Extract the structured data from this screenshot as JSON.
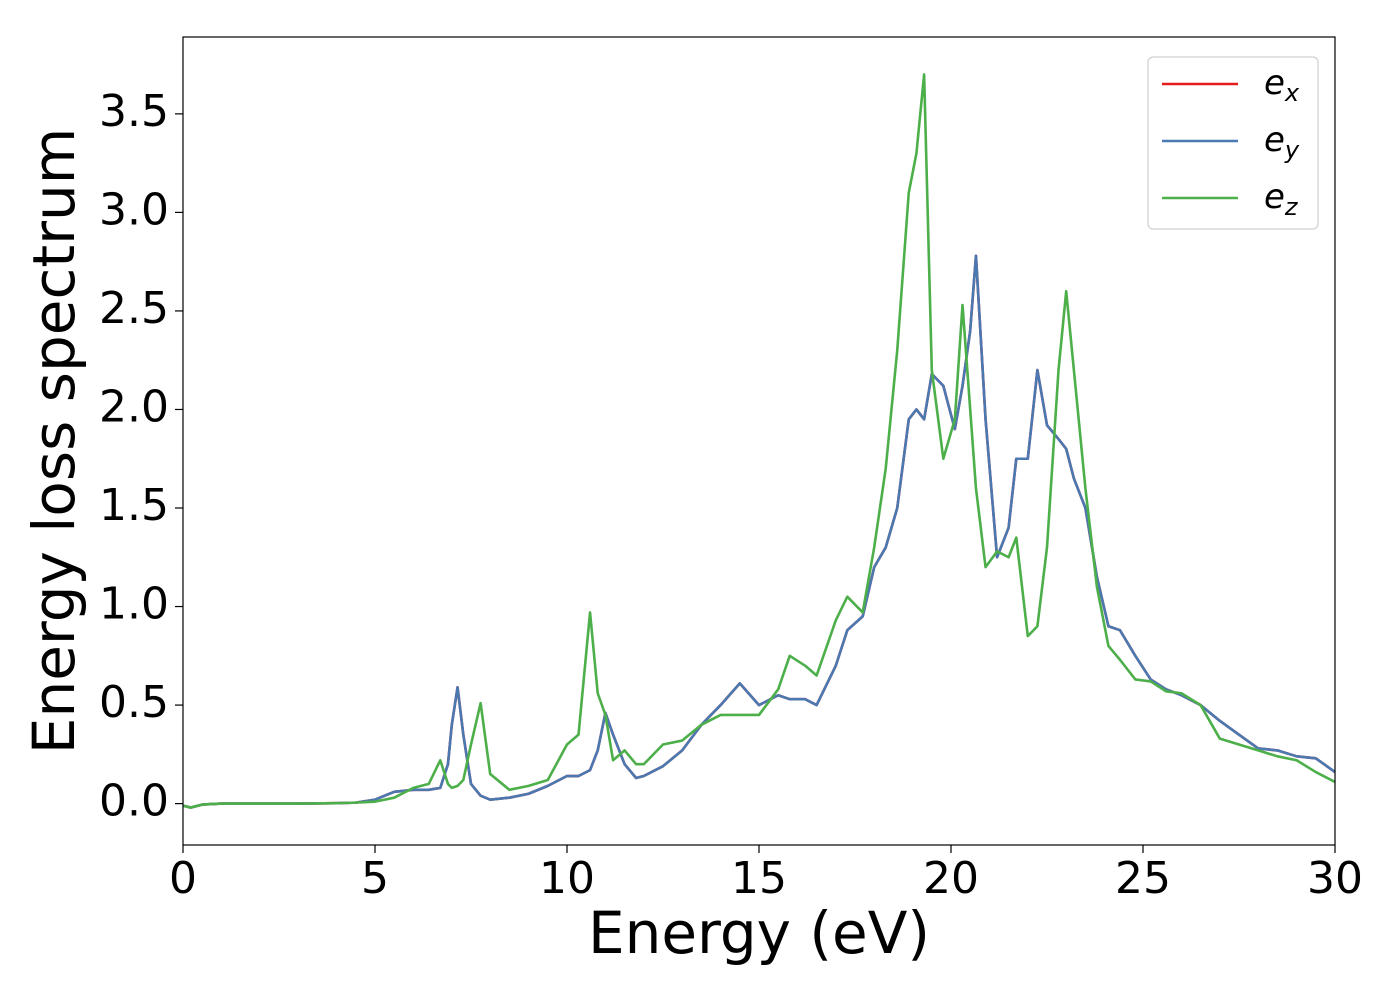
{
  "chart_data": {
    "type": "line",
    "xlabel": "Energy (eV)",
    "ylabel": "Energy loss spectrum",
    "x": [
      0,
      0.2,
      0.5,
      1,
      2,
      3,
      4,
      4.5,
      5,
      5.5,
      6,
      6.4,
      6.7,
      6.9,
      7.0,
      7.15,
      7.3,
      7.5,
      7.75,
      8.0,
      8.5,
      9,
      9.5,
      10,
      10.3,
      10.6,
      10.8,
      11.0,
      11.2,
      11.5,
      11.8,
      12,
      12.5,
      13,
      13.5,
      14,
      14.5,
      15,
      15.5,
      15.8,
      16.2,
      16.5,
      17,
      17.3,
      17.7,
      18,
      18.3,
      18.6,
      18.9,
      19.1,
      19.3,
      19.5,
      19.8,
      20.1,
      20.3,
      20.5,
      20.65,
      20.9,
      21.2,
      21.5,
      21.7,
      22,
      22.25,
      22.5,
      22.8,
      23,
      23.2,
      23.5,
      23.8,
      24.1,
      24.4,
      24.8,
      25.2,
      25.6,
      26,
      26.5,
      27,
      27.5,
      28,
      28.5,
      29,
      29.5,
      30
    ],
    "series": [
      {
        "name": "ex",
        "color": "#e41a1c",
        "values": [
          -0.01,
          -0.02,
          -0.005,
          0,
          0,
          0,
          0.002,
          0.005,
          0.02,
          0.06,
          0.07,
          0.07,
          0.08,
          0.2,
          0.4,
          0.59,
          0.35,
          0.1,
          0.04,
          0.02,
          0.03,
          0.05,
          0.09,
          0.14,
          0.14,
          0.17,
          0.27,
          0.46,
          0.35,
          0.2,
          0.13,
          0.14,
          0.19,
          0.27,
          0.4,
          0.5,
          0.61,
          0.5,
          0.55,
          0.53,
          0.53,
          0.5,
          0.7,
          0.88,
          0.95,
          1.2,
          1.3,
          1.5,
          1.95,
          2.0,
          1.95,
          2.18,
          2.12,
          1.9,
          2.12,
          2.4,
          2.78,
          1.95,
          1.25,
          1.4,
          1.75,
          1.75,
          2.2,
          1.92,
          1.85,
          1.8,
          1.65,
          1.5,
          1.15,
          0.9,
          0.88,
          0.75,
          0.63,
          0.58,
          0.55,
          0.5,
          0.42,
          0.35,
          0.28,
          0.27,
          0.24,
          0.23,
          0.16
        ]
      },
      {
        "name": "ey",
        "color": "#4a78b0",
        "values": [
          -0.01,
          -0.02,
          -0.005,
          0,
          0,
          0,
          0.002,
          0.005,
          0.02,
          0.06,
          0.07,
          0.07,
          0.08,
          0.2,
          0.4,
          0.59,
          0.35,
          0.1,
          0.04,
          0.02,
          0.03,
          0.05,
          0.09,
          0.14,
          0.14,
          0.17,
          0.27,
          0.46,
          0.35,
          0.2,
          0.13,
          0.14,
          0.19,
          0.27,
          0.4,
          0.5,
          0.61,
          0.5,
          0.55,
          0.53,
          0.53,
          0.5,
          0.7,
          0.88,
          0.95,
          1.2,
          1.3,
          1.5,
          1.95,
          2.0,
          1.95,
          2.18,
          2.12,
          1.9,
          2.12,
          2.4,
          2.78,
          1.95,
          1.25,
          1.4,
          1.75,
          1.75,
          2.2,
          1.92,
          1.85,
          1.8,
          1.65,
          1.5,
          1.15,
          0.9,
          0.88,
          0.75,
          0.63,
          0.58,
          0.55,
          0.5,
          0.42,
          0.35,
          0.28,
          0.27,
          0.24,
          0.23,
          0.16
        ]
      },
      {
        "name": "ez",
        "color": "#4daf4a",
        "values": [
          -0.01,
          -0.02,
          -0.005,
          0,
          0,
          0,
          0.002,
          0.005,
          0.01,
          0.03,
          0.08,
          0.1,
          0.22,
          0.1,
          0.08,
          0.09,
          0.12,
          0.3,
          0.51,
          0.15,
          0.07,
          0.09,
          0.12,
          0.3,
          0.35,
          0.97,
          0.56,
          0.45,
          0.22,
          0.27,
          0.2,
          0.2,
          0.3,
          0.32,
          0.4,
          0.45,
          0.45,
          0.45,
          0.58,
          0.75,
          0.7,
          0.65,
          0.93,
          1.05,
          0.97,
          1.3,
          1.7,
          2.3,
          3.1,
          3.3,
          3.7,
          2.2,
          1.75,
          1.95,
          2.53,
          2.0,
          1.6,
          1.2,
          1.28,
          1.25,
          1.35,
          0.85,
          0.9,
          1.3,
          2.2,
          2.6,
          2.2,
          1.6,
          1.1,
          0.8,
          0.73,
          0.63,
          0.62,
          0.57,
          0.56,
          0.5,
          0.33,
          0.3,
          0.27,
          0.24,
          0.22,
          0.16,
          0.11
        ]
      }
    ],
    "xlim": [
      0,
      30
    ],
    "xticks": [
      0,
      5,
      10,
      15,
      20,
      25,
      30
    ],
    "ylim": [
      -0.21,
      3.89
    ],
    "yticks": [
      {
        "value": 0,
        "label": "0.0"
      },
      {
        "value": 0.5,
        "label": "0.5"
      },
      {
        "value": 1,
        "label": "1.0"
      },
      {
        "value": 1.5,
        "label": "1.5"
      },
      {
        "value": 2,
        "label": "2.0"
      },
      {
        "value": 2.5,
        "label": "2.5"
      },
      {
        "value": 3,
        "label": "3.0"
      },
      {
        "value": 3.5,
        "label": "3.5"
      }
    ],
    "grid": false,
    "legend": "upper right"
  }
}
